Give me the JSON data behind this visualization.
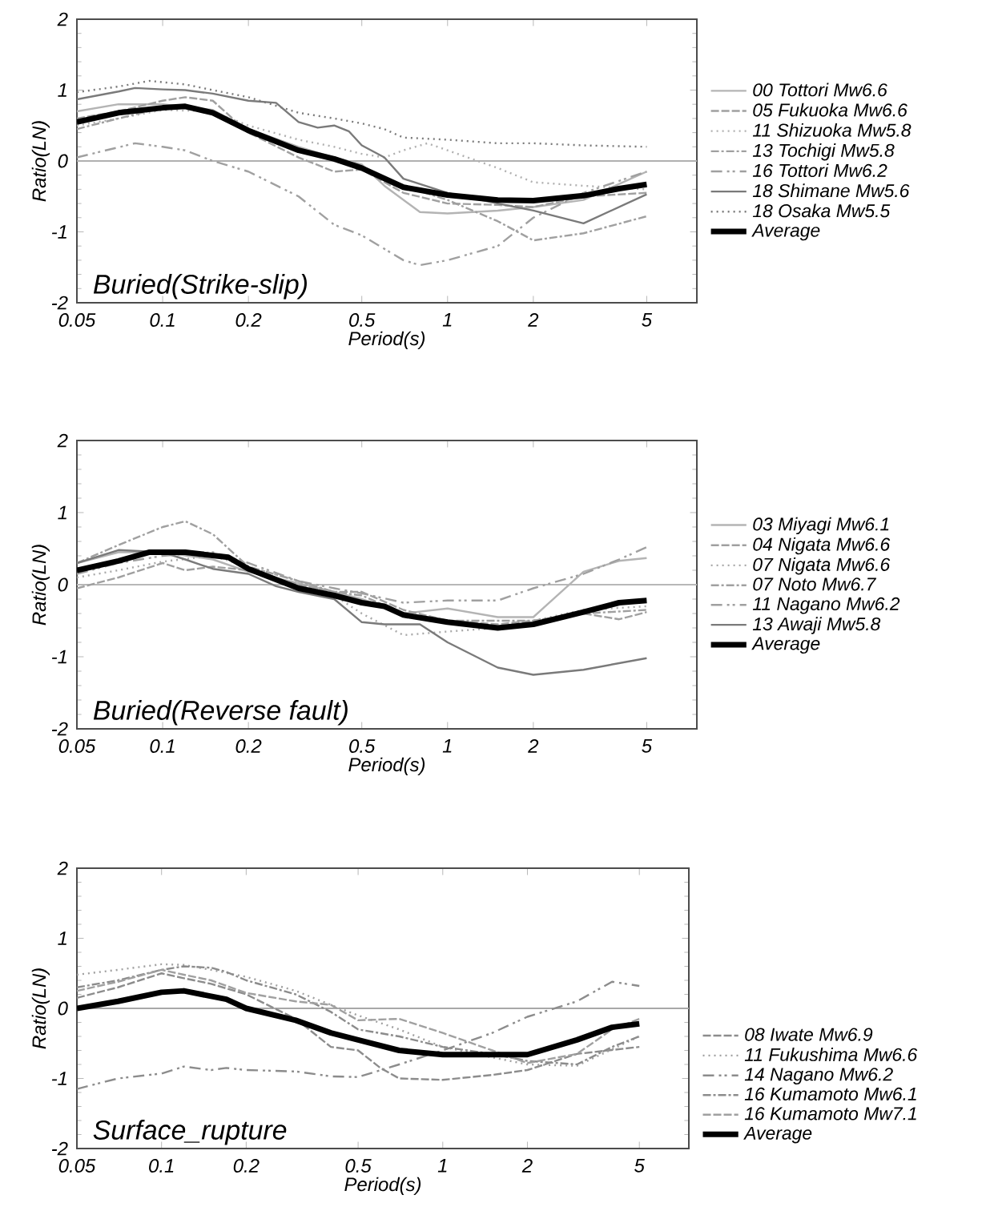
{
  "chart_data": [
    {
      "type": "line",
      "xlabel": "Period(s)",
      "ylabel": "Ratio(LN)",
      "log": "x",
      "xlim": [
        0.05,
        7.5
      ],
      "ylim": [
        -2,
        2
      ],
      "xticks": [
        0.05,
        0.1,
        0.2,
        0.5,
        1,
        2,
        5
      ],
      "yticks": [
        -2,
        -1,
        0,
        1,
        2
      ],
      "legend": "right",
      "annotations": [
        "Buried(Strike-slip)"
      ],
      "ref_lines": [
        {
          "axis": "y",
          "value": 0,
          "color": "#b0b0b0"
        }
      ],
      "series": [
        {
          "name": "00 Tottori  Mw6.6",
          "color": "#b4b4b4",
          "line_style": "solid",
          "x": [
            0.05,
            0.07,
            0.1,
            0.15,
            0.2,
            0.3,
            0.4,
            0.5,
            0.6,
            0.8,
            1,
            1.5,
            2,
            3,
            5
          ],
          "values": [
            0.7,
            0.8,
            0.8,
            0.72,
            0.45,
            0.2,
            0.05,
            -0.05,
            -0.35,
            -0.72,
            -0.74,
            -0.7,
            -0.65,
            -0.55,
            -0.15
          ]
        },
        {
          "name": "05 Fukuoka  Mw6.6",
          "color": "#a0a0a0",
          "line_style": "dashed",
          "x": [
            0.05,
            0.07,
            0.1,
            0.12,
            0.15,
            0.2,
            0.3,
            0.4,
            0.5,
            0.7,
            1,
            1.5,
            2,
            3,
            5
          ],
          "values": [
            0.6,
            0.7,
            0.85,
            0.9,
            0.85,
            0.4,
            0.05,
            -0.15,
            -0.12,
            -0.45,
            -0.6,
            -0.62,
            -0.65,
            -0.5,
            -0.45
          ]
        },
        {
          "name": "11 Shizuoka  Mw5.8",
          "color": "#b0b0b0",
          "line_style": "dotted",
          "x": [
            0.05,
            0.07,
            0.1,
            0.15,
            0.2,
            0.3,
            0.4,
            0.5,
            0.6,
            0.7,
            0.85,
            1,
            1.5,
            2,
            3,
            5
          ],
          "values": [
            0.5,
            0.6,
            0.72,
            0.7,
            0.5,
            0.3,
            0.2,
            0.1,
            0.05,
            0.15,
            0.25,
            0.15,
            -0.1,
            -0.3,
            -0.35,
            -0.4
          ]
        },
        {
          "name": "13 Tochigi  Mw5.8",
          "color": "#a0a0a0",
          "line_style": "dash-dot",
          "x": [
            0.05,
            0.07,
            0.1,
            0.12,
            0.15,
            0.2,
            0.3,
            0.4,
            0.5,
            0.7,
            1,
            1.5,
            2,
            3,
            5
          ],
          "values": [
            0.45,
            0.6,
            0.75,
            0.78,
            0.7,
            0.4,
            0.15,
            0.0,
            -0.1,
            -0.35,
            -0.55,
            -0.85,
            -1.12,
            -1.02,
            -0.78
          ]
        },
        {
          "name": "16 Tottori  Mw6.2",
          "color": "#a0a0a0",
          "line_style": "dash-dot-dot",
          "x": [
            0.05,
            0.08,
            0.1,
            0.12,
            0.15,
            0.2,
            0.3,
            0.4,
            0.5,
            0.7,
            0.8,
            1,
            1.5,
            2,
            3,
            5
          ],
          "values": [
            0.05,
            0.25,
            0.2,
            0.15,
            0.0,
            -0.15,
            -0.5,
            -0.9,
            -1.05,
            -1.4,
            -1.47,
            -1.4,
            -1.2,
            -0.8,
            -0.45,
            -0.15
          ]
        },
        {
          "name": "18 Shimane  Mw5.6",
          "color": "#7a7a7a",
          "line_style": "solid",
          "x": [
            0.05,
            0.07,
            0.08,
            0.1,
            0.12,
            0.15,
            0.2,
            0.25,
            0.3,
            0.35,
            0.4,
            0.45,
            0.5,
            0.6,
            0.7,
            1,
            1.5,
            2,
            3,
            5
          ],
          "values": [
            0.87,
            0.98,
            1.03,
            1.01,
            1.0,
            0.95,
            0.85,
            0.82,
            0.55,
            0.47,
            0.5,
            0.42,
            0.22,
            0.05,
            -0.25,
            -0.45,
            -0.6,
            -0.7,
            -0.88,
            -0.47
          ]
        },
        {
          "name": "18 Osaka  Mw5.5",
          "color": "#7a7a7a",
          "line_style": "dotted",
          "x": [
            0.05,
            0.07,
            0.09,
            0.12,
            0.15,
            0.2,
            0.3,
            0.4,
            0.5,
            0.6,
            0.7,
            1,
            1.5,
            2,
            3,
            5
          ],
          "values": [
            0.97,
            1.05,
            1.13,
            1.08,
            1.0,
            0.9,
            0.68,
            0.6,
            0.53,
            0.45,
            0.33,
            0.3,
            0.25,
            0.25,
            0.22,
            0.2
          ]
        },
        {
          "name": "Average",
          "color": "#000000",
          "line_style": "solid",
          "x": [
            0.05,
            0.07,
            0.1,
            0.12,
            0.15,
            0.2,
            0.3,
            0.4,
            0.5,
            0.7,
            1,
            1.5,
            2,
            3,
            4,
            5
          ],
          "values": [
            0.55,
            0.68,
            0.75,
            0.77,
            0.68,
            0.43,
            0.15,
            0.03,
            -0.1,
            -0.37,
            -0.48,
            -0.55,
            -0.56,
            -0.49,
            -0.39,
            -0.33
          ]
        }
      ]
    },
    {
      "type": "line",
      "xlabel": "Period(s)",
      "ylabel": "Ratio(LN)",
      "log": "x",
      "xlim": [
        0.05,
        7.5
      ],
      "ylim": [
        -2,
        2
      ],
      "xticks": [
        0.05,
        0.1,
        0.2,
        0.5,
        1,
        2,
        5
      ],
      "yticks": [
        -2,
        -1,
        0,
        1,
        2
      ],
      "legend": "right",
      "annotations": [
        "Buried(Reverse fault)"
      ],
      "ref_lines": [
        {
          "axis": "y",
          "value": 0,
          "color": "#b8b8b8"
        }
      ],
      "series": [
        {
          "name": "03 Miyagi  Mw6.1",
          "color": "#b4b4b4",
          "line_style": "solid",
          "x": [
            0.05,
            0.07,
            0.1,
            0.15,
            0.2,
            0.3,
            0.4,
            0.5,
            0.7,
            1,
            1.5,
            2,
            3,
            4,
            5
          ],
          "values": [
            0.3,
            0.45,
            0.45,
            0.35,
            0.18,
            0.02,
            -0.1,
            -0.2,
            -0.4,
            -0.33,
            -0.45,
            -0.45,
            0.18,
            0.33,
            0.37
          ]
        },
        {
          "name": "04 Nigata  Mw6.6",
          "color": "#a0a0a0",
          "line_style": "dashed",
          "x": [
            0.05,
            0.07,
            0.1,
            0.12,
            0.15,
            0.2,
            0.3,
            0.4,
            0.5,
            0.7,
            1,
            1.5,
            2,
            3,
            4,
            5
          ],
          "values": [
            -0.05,
            0.1,
            0.3,
            0.2,
            0.25,
            0.2,
            0.0,
            -0.1,
            -0.1,
            -0.35,
            -0.5,
            -0.55,
            -0.5,
            -0.4,
            -0.48,
            -0.38
          ]
        },
        {
          "name": "07 Nigata  Mw6.6",
          "color": "#a8a8a8",
          "line_style": "dotted",
          "x": [
            0.05,
            0.07,
            0.1,
            0.15,
            0.2,
            0.3,
            0.4,
            0.5,
            0.7,
            1,
            1.5,
            2,
            3,
            5
          ],
          "values": [
            0.1,
            0.2,
            0.32,
            0.4,
            0.25,
            0.05,
            -0.15,
            -0.4,
            -0.7,
            -0.65,
            -0.6,
            -0.5,
            -0.35,
            -0.3
          ]
        },
        {
          "name": "07 Noto  Mw6.7",
          "color": "#a0a0a0",
          "line_style": "dash-dot",
          "x": [
            0.05,
            0.07,
            0.1,
            0.12,
            0.15,
            0.2,
            0.3,
            0.4,
            0.5,
            0.7,
            1,
            2,
            3,
            5
          ],
          "values": [
            0.3,
            0.55,
            0.8,
            0.88,
            0.7,
            0.25,
            0.05,
            -0.1,
            -0.15,
            -0.4,
            -0.5,
            -0.5,
            -0.4,
            -0.35
          ]
        },
        {
          "name": "11 Nagano  Mw6.2",
          "color": "#a0a0a0",
          "line_style": "dash-dot-dot",
          "x": [
            0.05,
            0.07,
            0.1,
            0.15,
            0.2,
            0.3,
            0.4,
            0.5,
            0.7,
            1,
            1.5,
            2,
            3,
            4,
            5
          ],
          "values": [
            0.15,
            0.3,
            0.4,
            0.45,
            0.3,
            0.05,
            -0.05,
            -0.12,
            -0.25,
            -0.22,
            -0.22,
            -0.05,
            0.15,
            0.35,
            0.52
          ]
        },
        {
          "name": "13 Awaji  Mw5.8",
          "color": "#7a7a7a",
          "line_style": "solid",
          "x": [
            0.05,
            0.07,
            0.1,
            0.12,
            0.15,
            0.2,
            0.25,
            0.3,
            0.4,
            0.5,
            0.6,
            0.8,
            1,
            1.5,
            2,
            3,
            5
          ],
          "values": [
            0.3,
            0.48,
            0.45,
            0.35,
            0.22,
            0.15,
            -0.02,
            -0.1,
            -0.2,
            -0.52,
            -0.55,
            -0.55,
            -0.8,
            -1.15,
            -1.25,
            -1.18,
            -1.02
          ]
        },
        {
          "name": "Average",
          "color": "#000000",
          "line_style": "solid",
          "x": [
            0.05,
            0.07,
            0.09,
            0.12,
            0.17,
            0.2,
            0.3,
            0.4,
            0.5,
            0.6,
            0.7,
            1,
            1.5,
            2,
            3,
            4,
            5
          ],
          "values": [
            0.2,
            0.33,
            0.45,
            0.45,
            0.38,
            0.22,
            -0.05,
            -0.15,
            -0.25,
            -0.3,
            -0.42,
            -0.52,
            -0.6,
            -0.55,
            -0.38,
            -0.25,
            -0.22
          ]
        }
      ]
    },
    {
      "type": "line",
      "xlabel": "Period(s)",
      "ylabel": "Ratio(LN)",
      "log": "x",
      "xlim": [
        0.05,
        7.5
      ],
      "ylim": [
        -2,
        2
      ],
      "xticks": [
        0.05,
        0.1,
        0.2,
        0.5,
        1,
        2,
        5
      ],
      "yticks": [
        -2,
        -1,
        0,
        1,
        2
      ],
      "legend": "bottom right",
      "annotations": [
        "Surface_rupture"
      ],
      "ref_lines": [
        {
          "axis": "y",
          "value": 0,
          "color": "#a8a8a8"
        }
      ],
      "series": [
        {
          "name": "08 Iwate  Mw6.9",
          "color": "#8c8c8c",
          "line_style": "dashed",
          "x": [
            0.05,
            0.07,
            0.1,
            0.12,
            0.15,
            0.2,
            0.3,
            0.4,
            0.5,
            0.6,
            0.7,
            1,
            1.5,
            2,
            3,
            5
          ],
          "values": [
            0.15,
            0.3,
            0.5,
            0.43,
            0.35,
            0.2,
            -0.15,
            -0.55,
            -0.6,
            -0.85,
            -1.0,
            -1.02,
            -0.95,
            -0.88,
            -0.65,
            -0.55
          ]
        },
        {
          "name": "11 Fukushima Mw6.6",
          "color": "#a0a0a0",
          "line_style": "dotted",
          "x": [
            0.05,
            0.07,
            0.1,
            0.12,
            0.15,
            0.2,
            0.3,
            0.4,
            0.5,
            0.7,
            1,
            1.5,
            2,
            3,
            5
          ],
          "values": [
            0.48,
            0.55,
            0.63,
            0.62,
            0.55,
            0.45,
            0.25,
            0.05,
            -0.1,
            -0.3,
            -0.55,
            -0.7,
            -0.8,
            -0.82,
            -0.4
          ]
        },
        {
          "name": "14 Nagano  Mw6.2",
          "color": "#8c8c8c",
          "line_style": "dash-dot-dot",
          "x": [
            0.05,
            0.07,
            0.1,
            0.12,
            0.15,
            0.17,
            0.2,
            0.3,
            0.4,
            0.5,
            0.7,
            1,
            1.5,
            2,
            3,
            4,
            5
          ],
          "values": [
            -1.15,
            -1.0,
            -0.93,
            -0.83,
            -0.88,
            -0.85,
            -0.88,
            -0.9,
            -0.97,
            -0.98,
            -0.8,
            -0.6,
            -0.35,
            -0.12,
            0.1,
            0.38,
            0.32
          ]
        },
        {
          "name": "16 Kumamoto  Mw6.1",
          "color": "#8c8c8c",
          "line_style": "dash-dot",
          "x": [
            0.05,
            0.07,
            0.1,
            0.12,
            0.15,
            0.17,
            0.2,
            0.3,
            0.4,
            0.5,
            0.7,
            1,
            1.5,
            2,
            3,
            4,
            5
          ],
          "values": [
            0.3,
            0.4,
            0.55,
            0.6,
            0.58,
            0.52,
            0.4,
            0.2,
            -0.05,
            -0.3,
            -0.4,
            -0.55,
            -0.65,
            -0.75,
            -0.8,
            -0.55,
            -0.4
          ]
        },
        {
          "name": "16 Kumamoto  Mw7.1",
          "color": "#a0a0a0",
          "line_style": "dashed",
          "x": [
            0.05,
            0.07,
            0.1,
            0.12,
            0.15,
            0.2,
            0.3,
            0.4,
            0.5,
            0.7,
            1,
            1.5,
            2,
            3,
            4,
            5
          ],
          "values": [
            0.25,
            0.38,
            0.55,
            0.48,
            0.4,
            0.22,
            0.1,
            0.05,
            -0.17,
            -0.15,
            -0.35,
            -0.6,
            -0.78,
            -0.65,
            -0.3,
            -0.15
          ]
        },
        {
          "name": "Average",
          "color": "#000000",
          "line_style": "solid",
          "x": [
            0.05,
            0.07,
            0.1,
            0.12,
            0.17,
            0.2,
            0.3,
            0.4,
            0.5,
            0.7,
            1,
            1.5,
            2,
            3,
            4,
            5
          ],
          "values": [
            0.0,
            0.1,
            0.23,
            0.25,
            0.13,
            0.0,
            -0.17,
            -0.35,
            -0.45,
            -0.6,
            -0.66,
            -0.66,
            -0.66,
            -0.45,
            -0.27,
            -0.22
          ]
        }
      ]
    }
  ]
}
